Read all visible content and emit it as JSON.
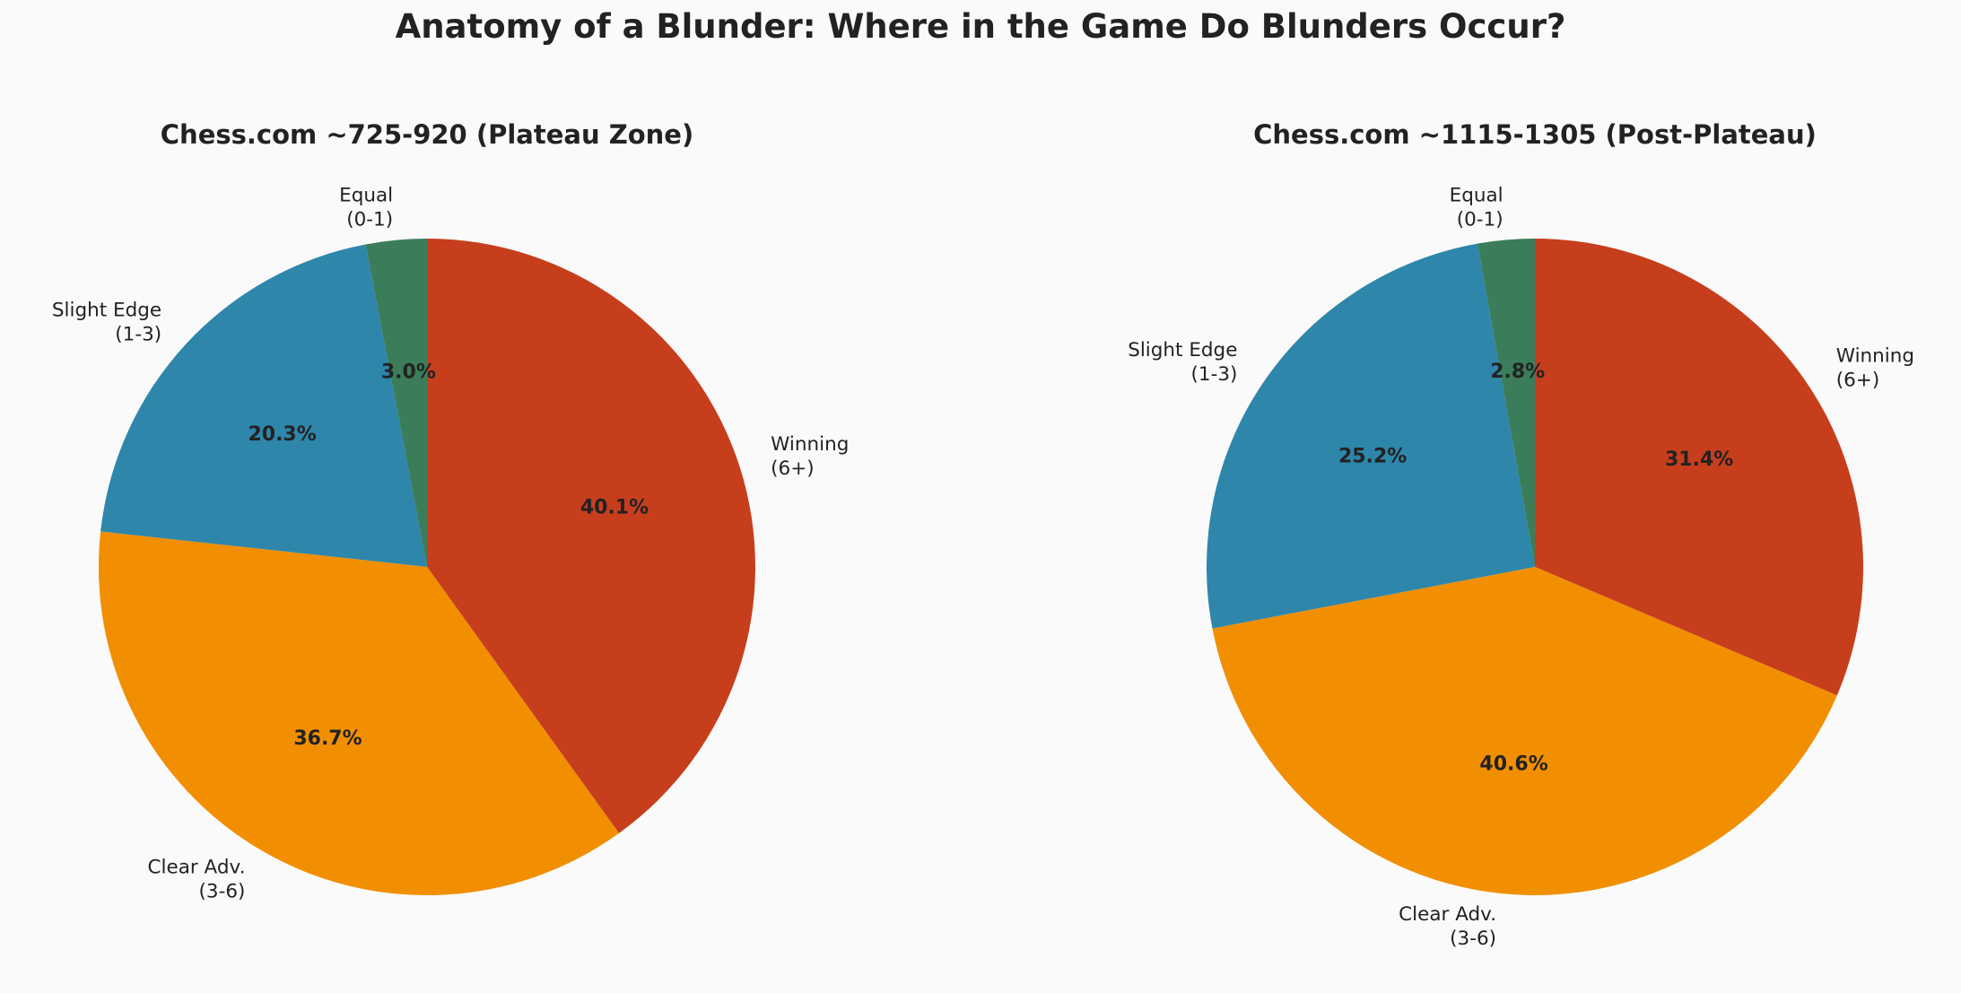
{
  "title": "Anatomy of a Blunder: Where in the Game Do Blunders Occur?",
  "chart_data": [
    {
      "type": "pie",
      "title": "Chess.com ~725-920 (Plateau Zone)",
      "categories": [
        "Winning (6+)",
        "Clear Adv. (3-6)",
        "Slight Edge (1-3)",
        "Equal (0-1)"
      ],
      "label_lines": [
        [
          "Winning",
          "(6+)"
        ],
        [
          "Clear Adv.",
          "(3-6)"
        ],
        [
          "Slight Edge",
          "(1-3)"
        ],
        [
          "Equal",
          "(0-1)"
        ]
      ],
      "values": [
        40.1,
        36.7,
        20.3,
        3.0
      ],
      "value_labels": [
        "40.1%",
        "36.7%",
        "20.3%",
        "3.0%"
      ],
      "colors": [
        "#c73e1d",
        "#f18f01",
        "#2e86ab",
        "#3b7d5a"
      ],
      "start": "top",
      "direction": "clockwise",
      "legend": "none"
    },
    {
      "type": "pie",
      "title": "Chess.com ~1115-1305 (Post-Plateau)",
      "categories": [
        "Winning (6+)",
        "Clear Adv. (3-6)",
        "Slight Edge (1-3)",
        "Equal (0-1)"
      ],
      "label_lines": [
        [
          "Winning",
          "(6+)"
        ],
        [
          "Clear Adv.",
          "(3-6)"
        ],
        [
          "Slight Edge",
          "(1-3)"
        ],
        [
          "Equal",
          "(0-1)"
        ]
      ],
      "values": [
        31.4,
        40.6,
        25.2,
        2.8
      ],
      "value_labels": [
        "31.4%",
        "40.6%",
        "25.2%",
        "2.8%"
      ],
      "colors": [
        "#c73e1d",
        "#f18f01",
        "#2e86ab",
        "#3b7d5a"
      ],
      "start": "top",
      "direction": "clockwise",
      "legend": "none"
    }
  ]
}
